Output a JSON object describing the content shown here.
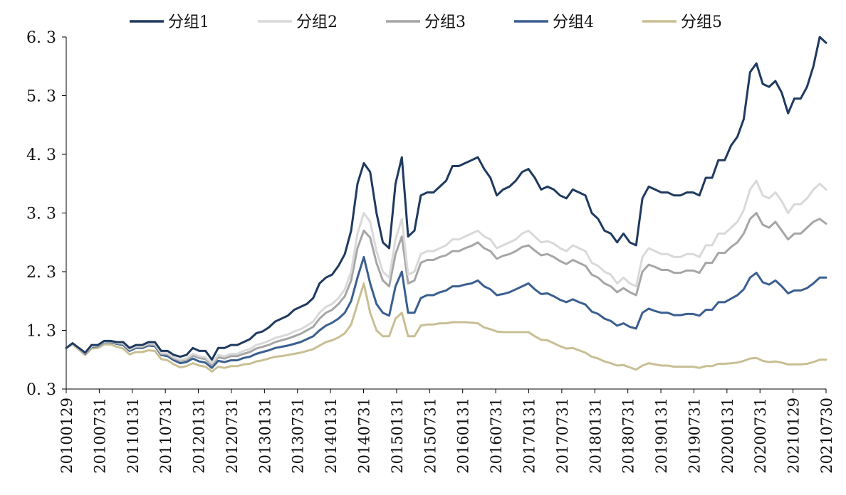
{
  "chart_data": {
    "type": "line",
    "title": "",
    "xlabel": "",
    "ylabel": "",
    "ylim": [
      0.3,
      6.3
    ],
    "yticks": [
      "0.3",
      "1.3",
      "2.3",
      "3.3",
      "4.3",
      "5.3",
      "6.3"
    ],
    "xtick_labels": [
      "20100129",
      "20100731",
      "20110131",
      "20110731",
      "20120131",
      "20120731",
      "20130131",
      "20130731",
      "20140131",
      "20140731",
      "20150131",
      "20150731",
      "20160131",
      "20160731",
      "20170131",
      "20170731",
      "20180131",
      "20180731",
      "20190131",
      "20190731",
      "20200131",
      "20200731",
      "20210129",
      "20210730"
    ],
    "legend_position": "top",
    "grid": false,
    "series": [
      {
        "name": "分组1",
        "color": "#1f3a5f",
        "values": [
          1.0,
          1.08,
          1.0,
          0.92,
          1.05,
          1.05,
          1.12,
          1.12,
          1.1,
          1.1,
          1.0,
          1.05,
          1.05,
          1.1,
          1.1,
          0.95,
          0.95,
          0.88,
          0.85,
          0.88,
          1.0,
          0.95,
          0.95,
          0.8,
          1.0,
          1.0,
          1.05,
          1.05,
          1.1,
          1.15,
          1.25,
          1.28,
          1.35,
          1.45,
          1.5,
          1.55,
          1.65,
          1.7,
          1.75,
          1.85,
          2.1,
          2.2,
          2.25,
          2.4,
          2.6,
          3.0,
          3.8,
          4.15,
          4.0,
          3.3,
          2.8,
          2.7,
          3.8,
          4.25,
          2.9,
          3.0,
          3.6,
          3.65,
          3.65,
          3.75,
          3.85,
          4.1,
          4.1,
          4.15,
          4.2,
          4.25,
          4.05,
          3.9,
          3.6,
          3.7,
          3.75,
          3.85,
          4.0,
          4.05,
          3.9,
          3.7,
          3.75,
          3.7,
          3.6,
          3.55,
          3.7,
          3.65,
          3.6,
          3.3,
          3.2,
          3.0,
          2.95,
          2.8,
          2.95,
          2.8,
          2.75,
          3.55,
          3.75,
          3.7,
          3.65,
          3.65,
          3.6,
          3.6,
          3.65,
          3.65,
          3.6,
          3.9,
          3.9,
          4.2,
          4.2,
          4.45,
          4.6,
          4.9,
          5.7,
          5.85,
          5.5,
          5.45,
          5.55,
          5.35,
          5.0,
          5.25,
          5.25,
          5.45,
          5.8,
          6.3,
          6.2
        ]
      },
      {
        "name": "分组2",
        "color": "#d9d9d9",
        "values": [
          1.0,
          1.07,
          0.99,
          0.91,
          1.03,
          1.04,
          1.11,
          1.12,
          1.09,
          1.08,
          0.98,
          1.03,
          1.03,
          1.08,
          1.07,
          0.92,
          0.91,
          0.84,
          0.8,
          0.82,
          0.9,
          0.86,
          0.84,
          0.74,
          0.88,
          0.86,
          0.9,
          0.9,
          0.95,
          0.98,
          1.05,
          1.08,
          1.12,
          1.17,
          1.2,
          1.23,
          1.28,
          1.32,
          1.38,
          1.45,
          1.6,
          1.7,
          1.75,
          1.85,
          2.0,
          2.3,
          2.95,
          3.3,
          3.15,
          2.65,
          2.3,
          2.2,
          2.85,
          3.2,
          2.25,
          2.3,
          2.6,
          2.65,
          2.65,
          2.7,
          2.75,
          2.85,
          2.85,
          2.9,
          2.95,
          3.0,
          2.9,
          2.85,
          2.7,
          2.75,
          2.8,
          2.85,
          2.95,
          3.0,
          2.9,
          2.8,
          2.82,
          2.78,
          2.7,
          2.65,
          2.75,
          2.7,
          2.65,
          2.45,
          2.4,
          2.3,
          2.25,
          2.1,
          2.2,
          2.1,
          2.05,
          2.55,
          2.7,
          2.65,
          2.6,
          2.6,
          2.55,
          2.55,
          2.6,
          2.6,
          2.55,
          2.75,
          2.75,
          2.95,
          2.95,
          3.05,
          3.15,
          3.35,
          3.7,
          3.85,
          3.6,
          3.55,
          3.65,
          3.5,
          3.3,
          3.45,
          3.45,
          3.55,
          3.7,
          3.8,
          3.7
        ]
      },
      {
        "name": "分组3",
        "color": "#a6a6a6",
        "values": [
          1.0,
          1.07,
          0.99,
          0.91,
          1.03,
          1.04,
          1.11,
          1.11,
          1.08,
          1.07,
          0.97,
          1.02,
          1.02,
          1.06,
          1.05,
          0.9,
          0.89,
          0.82,
          0.78,
          0.8,
          0.87,
          0.83,
          0.81,
          0.71,
          0.84,
          0.82,
          0.86,
          0.86,
          0.9,
          0.93,
          0.99,
          1.02,
          1.05,
          1.1,
          1.13,
          1.16,
          1.2,
          1.24,
          1.3,
          1.36,
          1.5,
          1.6,
          1.65,
          1.75,
          1.88,
          2.15,
          2.7,
          3.0,
          2.88,
          2.45,
          2.15,
          2.05,
          2.6,
          2.9,
          2.1,
          2.15,
          2.45,
          2.5,
          2.5,
          2.55,
          2.58,
          2.65,
          2.65,
          2.7,
          2.74,
          2.8,
          2.7,
          2.65,
          2.52,
          2.57,
          2.6,
          2.65,
          2.72,
          2.75,
          2.66,
          2.58,
          2.6,
          2.55,
          2.48,
          2.43,
          2.5,
          2.45,
          2.4,
          2.25,
          2.2,
          2.1,
          2.05,
          1.95,
          2.02,
          1.95,
          1.9,
          2.3,
          2.42,
          2.38,
          2.33,
          2.33,
          2.28,
          2.28,
          2.32,
          2.32,
          2.28,
          2.45,
          2.45,
          2.62,
          2.62,
          2.72,
          2.8,
          2.95,
          3.2,
          3.3,
          3.1,
          3.05,
          3.15,
          3.0,
          2.85,
          2.95,
          2.95,
          3.05,
          3.15,
          3.2,
          3.12
        ]
      },
      {
        "name": "分组4",
        "color": "#3a5f8f",
        "values": [
          1.0,
          1.07,
          0.99,
          0.9,
          1.02,
          1.03,
          1.1,
          1.1,
          1.07,
          1.05,
          0.95,
          1.0,
          1.0,
          1.04,
          1.03,
          0.88,
          0.86,
          0.79,
          0.74,
          0.76,
          0.82,
          0.77,
          0.75,
          0.66,
          0.78,
          0.76,
          0.79,
          0.79,
          0.83,
          0.85,
          0.9,
          0.93,
          0.96,
          1.0,
          1.02,
          1.04,
          1.07,
          1.1,
          1.15,
          1.2,
          1.3,
          1.38,
          1.43,
          1.5,
          1.6,
          1.8,
          2.2,
          2.55,
          2.1,
          1.75,
          1.6,
          1.55,
          2.05,
          2.3,
          1.6,
          1.6,
          1.85,
          1.9,
          1.9,
          1.95,
          1.98,
          2.05,
          2.05,
          2.08,
          2.1,
          2.15,
          2.05,
          2.0,
          1.9,
          1.92,
          1.95,
          2.0,
          2.05,
          2.1,
          2.0,
          1.92,
          1.93,
          1.88,
          1.82,
          1.78,
          1.83,
          1.78,
          1.74,
          1.62,
          1.58,
          1.5,
          1.46,
          1.38,
          1.42,
          1.36,
          1.33,
          1.6,
          1.67,
          1.63,
          1.6,
          1.6,
          1.56,
          1.56,
          1.58,
          1.58,
          1.55,
          1.65,
          1.65,
          1.78,
          1.78,
          1.84,
          1.9,
          2.0,
          2.2,
          2.28,
          2.12,
          2.08,
          2.15,
          2.05,
          1.93,
          1.98,
          1.98,
          2.02,
          2.1,
          2.2,
          2.2
        ]
      },
      {
        "name": "分组5",
        "color": "#c8bf94",
        "values": [
          1.0,
          1.06,
          0.97,
          0.88,
          0.99,
          1.0,
          1.06,
          1.06,
          1.02,
          0.99,
          0.89,
          0.93,
          0.93,
          0.96,
          0.95,
          0.81,
          0.79,
          0.72,
          0.67,
          0.69,
          0.74,
          0.7,
          0.68,
          0.6,
          0.68,
          0.66,
          0.69,
          0.69,
          0.72,
          0.73,
          0.77,
          0.79,
          0.82,
          0.85,
          0.86,
          0.88,
          0.9,
          0.92,
          0.95,
          0.98,
          1.04,
          1.1,
          1.13,
          1.18,
          1.25,
          1.4,
          1.75,
          2.1,
          1.6,
          1.3,
          1.2,
          1.2,
          1.5,
          1.6,
          1.2,
          1.2,
          1.38,
          1.4,
          1.4,
          1.42,
          1.42,
          1.44,
          1.44,
          1.44,
          1.43,
          1.42,
          1.35,
          1.32,
          1.28,
          1.27,
          1.27,
          1.27,
          1.27,
          1.27,
          1.2,
          1.14,
          1.13,
          1.08,
          1.03,
          0.99,
          1.0,
          0.96,
          0.92,
          0.85,
          0.82,
          0.77,
          0.74,
          0.7,
          0.71,
          0.67,
          0.63,
          0.7,
          0.74,
          0.72,
          0.7,
          0.7,
          0.68,
          0.68,
          0.68,
          0.68,
          0.66,
          0.69,
          0.69,
          0.73,
          0.73,
          0.74,
          0.75,
          0.78,
          0.82,
          0.83,
          0.78,
          0.76,
          0.77,
          0.75,
          0.72,
          0.72,
          0.72,
          0.73,
          0.76,
          0.8,
          0.8
        ]
      }
    ]
  }
}
